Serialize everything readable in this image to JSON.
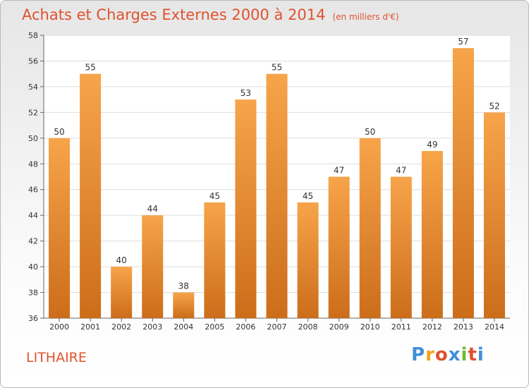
{
  "title": "Achats et Charges Externes 2000 à 2014",
  "subtitle": "(en milliers d'€)",
  "commune": "LITHAIRE",
  "logo": {
    "letters": [
      "P",
      "r",
      "o",
      "x",
      "i",
      "t",
      "i"
    ],
    "colors": [
      "#3f8fd6",
      "#f2a21a",
      "#e0522e",
      "#3f8fd6",
      "#6cbb2d",
      "#e0522e",
      "#3f8fd6"
    ]
  },
  "colors": {
    "bar_top": "#f7a44a",
    "bar_bottom": "#cc6d1a",
    "text": "#e0522e"
  },
  "chart_data": {
    "type": "bar",
    "title": "Achats et Charges Externes 2000 à 2014",
    "subtitle": "(en milliers d'€)",
    "categories": [
      "2000",
      "2001",
      "2002",
      "2003",
      "2004",
      "2005",
      "2006",
      "2007",
      "2008",
      "2009",
      "2010",
      "2011",
      "2012",
      "2013",
      "2014"
    ],
    "values": [
      50,
      55,
      40,
      44,
      38,
      45,
      53,
      55,
      45,
      47,
      50,
      47,
      49,
      57,
      52
    ],
    "ylim": [
      36,
      58
    ],
    "yticks": [
      36,
      38,
      40,
      42,
      44,
      46,
      48,
      50,
      52,
      54,
      56,
      58
    ],
    "grid": true
  }
}
